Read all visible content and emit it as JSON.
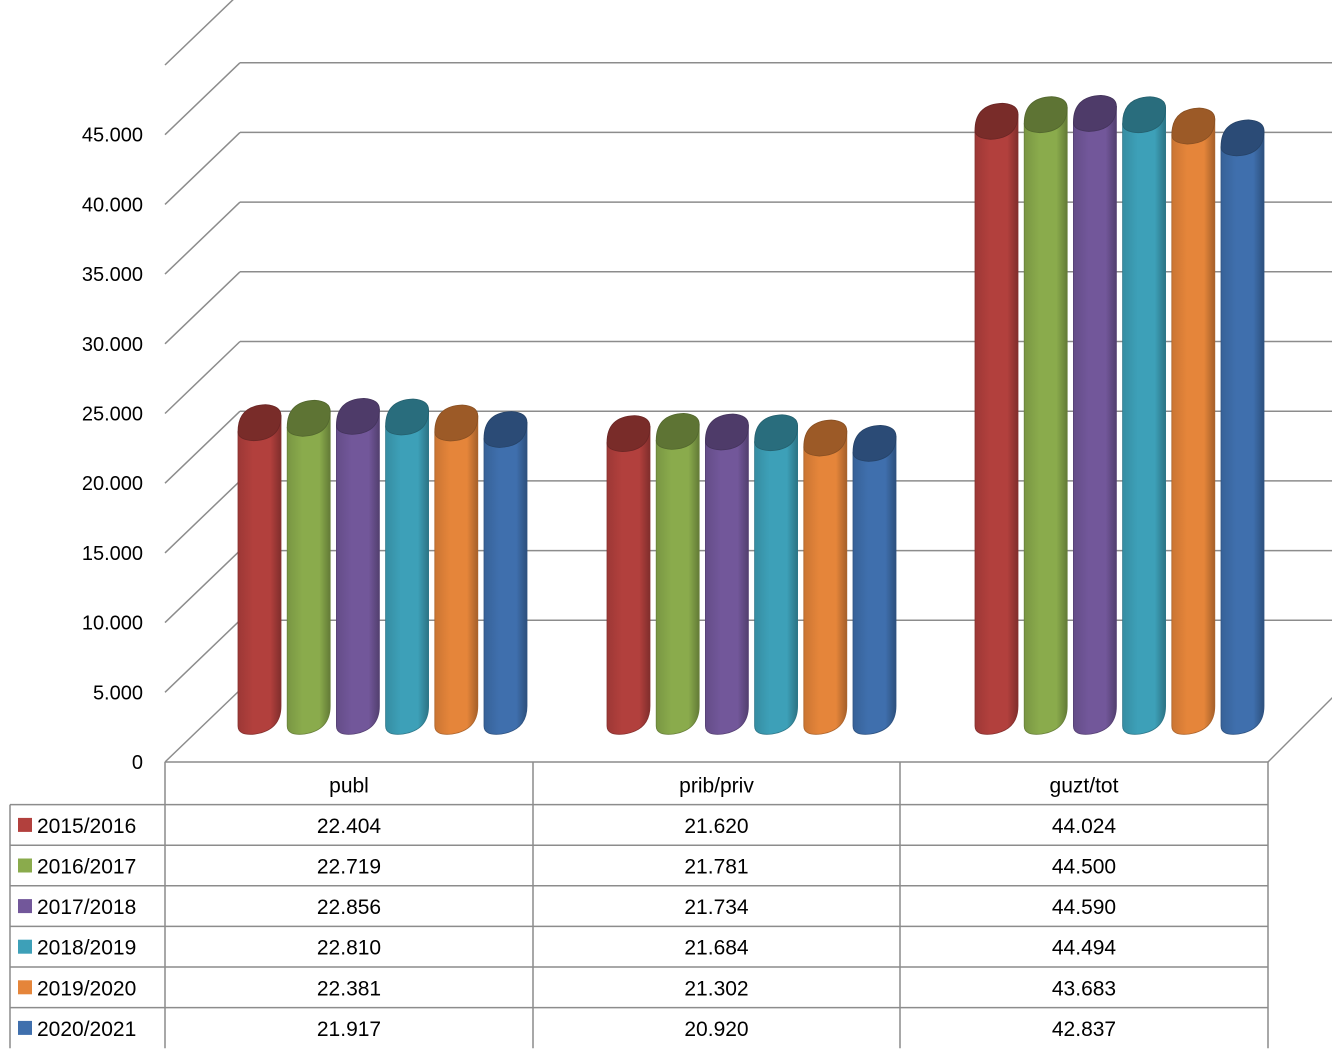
{
  "chart_data": {
    "type": "bar",
    "title": "",
    "xlabel": "",
    "ylabel": "",
    "ylim": [
      0,
      45000
    ],
    "ytick_values": [
      0,
      5000,
      10000,
      15000,
      20000,
      25000,
      30000,
      35000,
      40000,
      45000
    ],
    "ytick_labels": [
      "0",
      "5.000",
      "10.000",
      "15.000",
      "20.000",
      "25.000",
      "30.000",
      "35.000",
      "40.000",
      "45.000"
    ],
    "grid": true,
    "legend": "data-table",
    "categories": [
      "publ",
      "prib/priv",
      "guzt/tot"
    ],
    "series": [
      {
        "name": "2015/2016",
        "color": "#b2403d",
        "values": [
          22404,
          21620,
          44024
        ],
        "labels": [
          "22.404",
          "21.620",
          "44.024"
        ]
      },
      {
        "name": "2016/2017",
        "color": "#8aab4c",
        "values": [
          22719,
          21781,
          44500
        ],
        "labels": [
          "22.719",
          "21.781",
          "44.500"
        ]
      },
      {
        "name": "2017/2018",
        "color": "#72579a",
        "values": [
          22856,
          21734,
          44590
        ],
        "labels": [
          "22.856",
          "21.734",
          "44.590"
        ]
      },
      {
        "name": "2018/2019",
        "color": "#3da0b8",
        "values": [
          22810,
          21684,
          44494
        ],
        "labels": [
          "22.810",
          "21.684",
          "44.494"
        ]
      },
      {
        "name": "2019/2020",
        "color": "#e5853a",
        "values": [
          22381,
          21302,
          43683
        ],
        "labels": [
          "22.381",
          "21.302",
          "43.683"
        ]
      },
      {
        "name": "2020/2021",
        "color": "#3f6fad",
        "values": [
          21917,
          20920,
          42837
        ],
        "labels": [
          "21.917",
          "20.920",
          "42.837"
        ]
      }
    ]
  }
}
